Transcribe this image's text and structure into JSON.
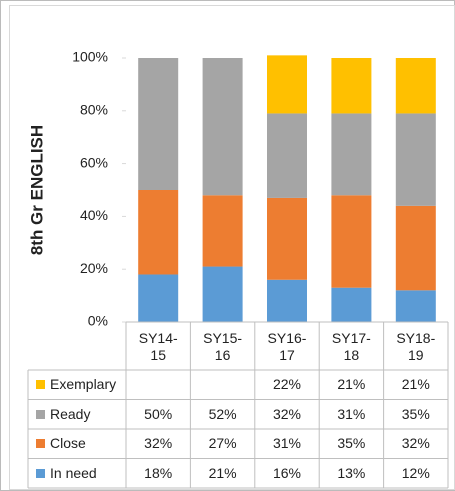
{
  "chart_data": {
    "type": "stacked_bar",
    "y_label": "8th Gr ENGLISH",
    "categories": [
      "SY14-15",
      "SY15-16",
      "SY16-17",
      "SY17-18",
      "SY18-19"
    ],
    "series": [
      {
        "name": "In need",
        "color": "#5b9bd5",
        "values": [
          18,
          21,
          16,
          13,
          12
        ],
        "value_labels": [
          "18%",
          "21%",
          "16%",
          "13%",
          "12%"
        ]
      },
      {
        "name": "Close",
        "color": "#ed7d31",
        "values": [
          32,
          27,
          31,
          35,
          32
        ],
        "value_labels": [
          "32%",
          "27%",
          "31%",
          "35%",
          "32%"
        ]
      },
      {
        "name": "Ready",
        "color": "#a5a5a5",
        "values": [
          50,
          52,
          32,
          31,
          35
        ],
        "value_labels": [
          "50%",
          "52%",
          "32%",
          "31%",
          "35%"
        ]
      },
      {
        "name": "Exemplary",
        "color": "#ffc000",
        "values": [
          null,
          null,
          22,
          21,
          21
        ],
        "value_labels": [
          null,
          null,
          "22%",
          "21%",
          "21%"
        ]
      }
    ],
    "ylim": [
      0,
      100
    ],
    "yticks": [
      {
        "value": 0,
        "label": "0%"
      },
      {
        "value": 20,
        "label": "20%"
      },
      {
        "value": 40,
        "label": "40%"
      },
      {
        "value": 60,
        "label": "60%"
      },
      {
        "value": 80,
        "label": "80%"
      },
      {
        "value": 100,
        "label": "100%"
      }
    ]
  }
}
